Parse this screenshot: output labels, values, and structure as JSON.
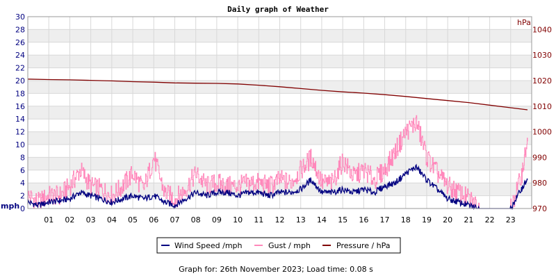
{
  "chart_data": {
    "type": "line",
    "title": "Daily graph of Weather",
    "ylabel_left": "mph",
    "ylabel_right": "hPa",
    "ylim_left": [
      0,
      30
    ],
    "ylim_right": [
      970,
      1045
    ],
    "xlim": [
      0,
      24
    ],
    "yticks_left": [
      "0",
      "2",
      "4",
      "6",
      "8",
      "10",
      "12",
      "14",
      "16",
      "18",
      "20",
      "22",
      "24",
      "26",
      "28",
      "30"
    ],
    "yticks_right": [
      "970",
      "980",
      "990",
      "1000",
      "1010",
      "1020",
      "1030",
      "1040"
    ],
    "xticks": [
      "01",
      "02",
      "03",
      "04",
      "05",
      "06",
      "07",
      "08",
      "09",
      "10",
      "11",
      "12",
      "13",
      "14",
      "15",
      "16",
      "17",
      "18",
      "19",
      "20",
      "21",
      "22",
      "23"
    ],
    "series": [
      {
        "name": "Wind Speed /mph",
        "color": "#000080",
        "axis": "left",
        "x": [
          0,
          0.5,
          1,
          1.5,
          2,
          2.5,
          3,
          3.5,
          4,
          4.5,
          5,
          5.5,
          6,
          6.5,
          7,
          7.5,
          8,
          8.5,
          9,
          9.5,
          10,
          10.5,
          11,
          11.5,
          12,
          12.5,
          13,
          13.5,
          14,
          14.5,
          15,
          15.5,
          16,
          16.5,
          17,
          17.5,
          18,
          18.5,
          19,
          19.5,
          20,
          20.5,
          21,
          21.5,
          22,
          22.5,
          23,
          23.5,
          23.8
        ],
        "values": [
          1.0,
          0.5,
          1.0,
          1.2,
          1.5,
          2.5,
          2.0,
          1.5,
          1.0,
          1.5,
          2.0,
          1.5,
          2.0,
          1.0,
          0.5,
          1.5,
          2.5,
          2.0,
          2.5,
          2.5,
          2.0,
          2.5,
          2.5,
          2.0,
          2.5,
          2.5,
          3.0,
          4.5,
          2.5,
          2.5,
          3.0,
          2.5,
          3.0,
          2.5,
          3.5,
          4.0,
          5.5,
          6.5,
          4.5,
          3.0,
          1.5,
          1.0,
          0.5,
          0.0,
          0.0,
          0.0,
          0.0,
          3.0,
          4.5
        ]
      },
      {
        "name": "Gust / mph",
        "color": "#FF88BB",
        "axis": "left",
        "x": [
          0,
          0.5,
          1,
          1.5,
          2,
          2.5,
          3,
          3.5,
          4,
          4.5,
          5,
          5.5,
          6,
          6.5,
          7,
          7.5,
          8,
          8.5,
          9,
          9.5,
          10,
          10.5,
          11,
          11.5,
          12,
          12.5,
          13,
          13.5,
          14,
          14.5,
          15,
          15.5,
          16,
          16.5,
          17,
          17.5,
          18,
          18.5,
          19,
          19.5,
          20,
          20.5,
          21,
          21.5,
          22,
          22.5,
          23,
          23.5,
          23.8
        ],
        "values": [
          2.0,
          1.0,
          2.0,
          2.0,
          3.5,
          6.0,
          3.5,
          3.0,
          2.0,
          3.5,
          5.5,
          3.0,
          8.0,
          2.5,
          1.5,
          3.0,
          5.5,
          3.5,
          4.0,
          3.5,
          3.5,
          4.0,
          4.0,
          3.5,
          4.5,
          4.0,
          6.0,
          8.0,
          4.0,
          4.0,
          7.5,
          5.0,
          6.0,
          4.5,
          6.0,
          9.0,
          12.0,
          13.5,
          8.0,
          5.5,
          3.5,
          2.5,
          1.5,
          0.0,
          0.0,
          0.0,
          0.0,
          5.0,
          10.5
        ]
      },
      {
        "name": "Pressure / hPa",
        "color": "#800000",
        "axis": "right",
        "x": [
          0,
          1,
          2,
          3,
          4,
          5,
          6,
          7,
          8,
          9,
          10,
          11,
          12,
          13,
          14,
          15,
          16,
          17,
          18,
          19,
          20,
          21,
          22,
          23,
          23.8
        ],
        "values": [
          1020.6,
          1020.4,
          1020.3,
          1020.1,
          1019.9,
          1019.6,
          1019.4,
          1019.1,
          1019.0,
          1018.9,
          1018.7,
          1018.2,
          1017.6,
          1016.9,
          1016.2,
          1015.6,
          1015.1,
          1014.5,
          1013.8,
          1013.0,
          1012.2,
          1011.4,
          1010.4,
          1009.4,
          1008.6
        ]
      }
    ]
  },
  "legend": {
    "items": [
      "Wind Speed /mph",
      "Gust / mph",
      "Pressure / hPa"
    ]
  },
  "footer": {
    "text": "Graph for: 26th November 2023; Load time: 0.08 s"
  }
}
